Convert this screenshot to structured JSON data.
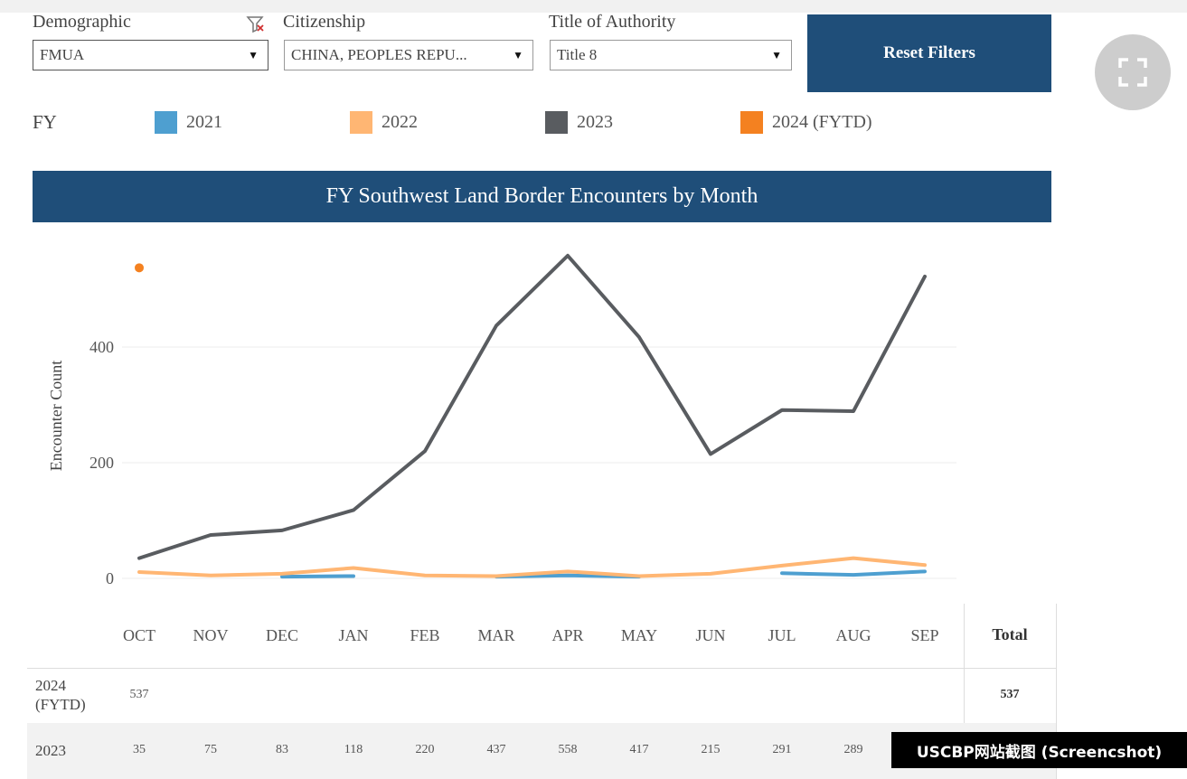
{
  "filters": {
    "demographic": {
      "label": "Demographic",
      "value": "FMUA"
    },
    "citizenship": {
      "label": "Citizenship",
      "value": "CHINA, PEOPLES REPU..."
    },
    "authority": {
      "label": "Title of Authority",
      "value": "Title 8"
    },
    "reset_label": "Reset Filters"
  },
  "legend": {
    "title": "FY",
    "items": [
      {
        "label": "2021",
        "color": "#4e9fd0"
      },
      {
        "label": "2022",
        "color": "#ffb673"
      },
      {
        "label": "2023",
        "color": "#595c60"
      },
      {
        "label": "2024 (FYTD)",
        "color": "#f48120"
      }
    ]
  },
  "chart_data": {
    "type": "line",
    "title": "FY Southwest Land Border Encounters by Month",
    "ylabel": "Encounter Count",
    "xlabel": "",
    "categories": [
      "OCT",
      "NOV",
      "DEC",
      "JAN",
      "FEB",
      "MAR",
      "APR",
      "MAY",
      "JUN",
      "JUL",
      "AUG",
      "SEP"
    ],
    "yticks": [
      0,
      200,
      400
    ],
    "ylim": [
      0,
      560
    ],
    "grid": true,
    "legend_position": "top",
    "series": [
      {
        "name": "2021",
        "color": "#4e9fd0",
        "values": [
          null,
          null,
          3,
          4,
          null,
          3,
          5,
          3,
          null,
          9,
          6,
          12
        ]
      },
      {
        "name": "2022",
        "color": "#ffb673",
        "values": [
          11,
          5,
          8,
          18,
          5,
          4,
          12,
          4,
          8,
          22,
          35,
          23
        ]
      },
      {
        "name": "2023",
        "color": "#595c60",
        "values": [
          35,
          75,
          83,
          118,
          220,
          437,
          558,
          417,
          215,
          291,
          289,
          522
        ]
      },
      {
        "name": "2024 (FYTD)",
        "color": "#f48120",
        "values": [
          537,
          null,
          null,
          null,
          null,
          null,
          null,
          null,
          null,
          null,
          null,
          null
        ]
      }
    ]
  },
  "table": {
    "total_header": "Total",
    "rows": [
      {
        "label": "2024 (FYTD)",
        "values": [
          "537",
          "",
          "",
          "",
          "",
          "",
          "",
          "",
          "",
          "",
          "",
          ""
        ],
        "total": "537"
      },
      {
        "label": "2023",
        "values": [
          "35",
          "75",
          "83",
          "118",
          "220",
          "437",
          "558",
          "417",
          "215",
          "291",
          "289",
          ""
        ],
        "total": ""
      }
    ]
  },
  "caption": "USCBP网站截图 (Screencshot)"
}
